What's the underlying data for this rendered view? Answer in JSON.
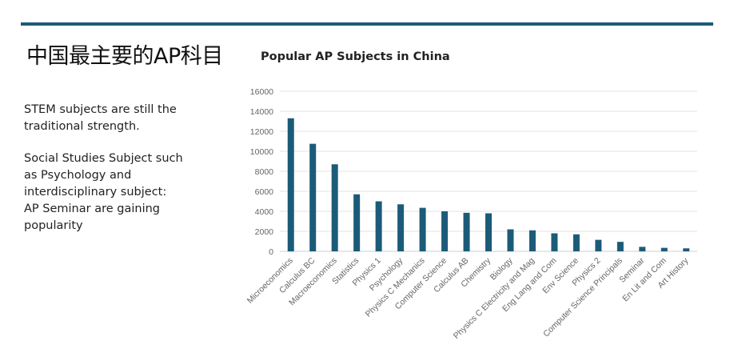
{
  "slide": {
    "title": "中国最主要的AP科目",
    "bullets": [
      "STEM subjects are still the traditional strength.",
      "Social Studies Subject such as Psychology and interdisciplinary subject: AP Seminar are gaining popularity"
    ]
  },
  "chart_data": {
    "type": "bar",
    "title": "Popular AP Subjects in China",
    "xlabel": "",
    "ylabel": "",
    "ylim": [
      0,
      16000
    ],
    "yticks": [
      0,
      2000,
      4000,
      6000,
      8000,
      10000,
      12000,
      14000,
      16000
    ],
    "grid": true,
    "color": "#1b5b79",
    "categories": [
      "Microeconomics",
      "Calculus BC",
      "Macroeconomics",
      "Statistics",
      "Physics 1",
      "Psychology",
      "Physics C Mechanics",
      "Computer Science",
      "Calculus AB",
      "Chemistry",
      "Biology",
      "Physics C Electricity and Mag",
      "Eng Lang and Com",
      "Env Science",
      "Physics 2",
      "Computer Science Principals",
      "Seminar",
      "En Lit and Com",
      "Art History"
    ],
    "values": [
      13300,
      10750,
      8700,
      5700,
      5000,
      4700,
      4350,
      4000,
      3850,
      3800,
      2200,
      2100,
      1800,
      1700,
      1150,
      950,
      450,
      350,
      300
    ]
  }
}
